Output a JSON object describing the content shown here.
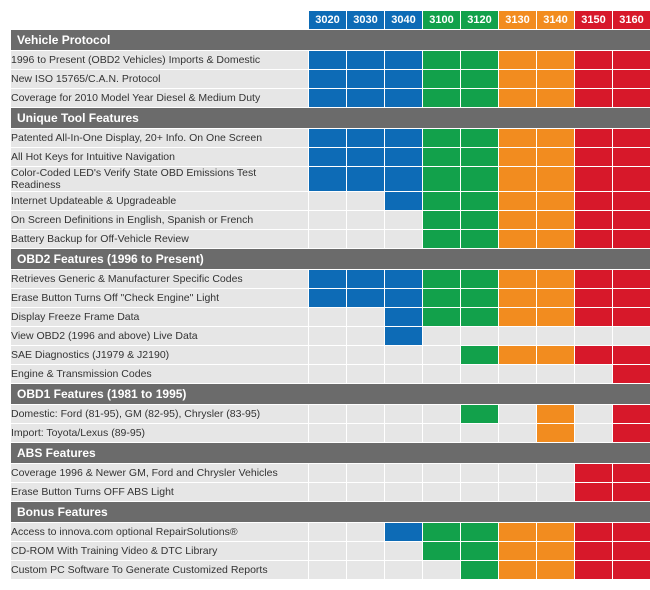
{
  "colors": {
    "blue": "#0d6bb6",
    "green": "#12a14b",
    "orange": "#f28c1f",
    "red": "#d7182a",
    "section_bg": "#6b6b6b",
    "row_bg": "#e6e6e6",
    "empty_cell": "#e6e6e6"
  },
  "products": [
    {
      "id": "3020",
      "color": "blue"
    },
    {
      "id": "3030",
      "color": "blue"
    },
    {
      "id": "3040",
      "color": "blue"
    },
    {
      "id": "3100",
      "color": "green"
    },
    {
      "id": "3120",
      "color": "green"
    },
    {
      "id": "3130",
      "color": "orange"
    },
    {
      "id": "3140",
      "color": "orange"
    },
    {
      "id": "3150",
      "color": "red"
    },
    {
      "id": "3160",
      "color": "red"
    }
  ],
  "sections": [
    {
      "title": "Vehicle Protocol",
      "rows": [
        {
          "label": "1996 to Present (OBD2 Vehicles) Imports & Domestic",
          "cells": [
            1,
            1,
            1,
            1,
            1,
            1,
            1,
            1,
            1
          ]
        },
        {
          "label": "New ISO 15765/C.A.N. Protocol",
          "cells": [
            1,
            1,
            1,
            1,
            1,
            1,
            1,
            1,
            1
          ]
        },
        {
          "label": "Coverage for 2010 Model Year Diesel & Medium Duty",
          "cells": [
            1,
            1,
            1,
            1,
            1,
            1,
            1,
            1,
            1
          ]
        }
      ]
    },
    {
      "title": "Unique Tool Features",
      "rows": [
        {
          "label": "Patented All-In-One Display, 20+ Info. On One Screen",
          "cells": [
            1,
            1,
            1,
            1,
            1,
            1,
            1,
            1,
            1
          ]
        },
        {
          "label": "All Hot Keys for Intuitive Navigation",
          "cells": [
            1,
            1,
            1,
            1,
            1,
            1,
            1,
            1,
            1
          ]
        },
        {
          "label": "Color-Coded LED's Verify State OBD Emissions Test Readiness",
          "cells": [
            1,
            1,
            1,
            1,
            1,
            1,
            1,
            1,
            1
          ]
        },
        {
          "label": "Internet Updateable & Upgradeable",
          "cells": [
            0,
            0,
            1,
            1,
            1,
            1,
            1,
            1,
            1
          ]
        },
        {
          "label": "On Screen Definitions in English, Spanish or French",
          "cells": [
            0,
            0,
            0,
            1,
            1,
            1,
            1,
            1,
            1
          ]
        },
        {
          "label": "Battery Backup for Off-Vehicle Review",
          "cells": [
            0,
            0,
            0,
            1,
            1,
            1,
            1,
            1,
            1
          ]
        }
      ]
    },
    {
      "title": "OBD2 Features (1996 to Present)",
      "rows": [
        {
          "label": "Retrieves Generic & Manufacturer Specific Codes",
          "cells": [
            1,
            1,
            1,
            1,
            1,
            1,
            1,
            1,
            1
          ]
        },
        {
          "label": "Erase Button Turns Off \"Check Engine\" Light",
          "cells": [
            1,
            1,
            1,
            1,
            1,
            1,
            1,
            1,
            1
          ]
        },
        {
          "label": "Display Freeze Frame Data",
          "cells": [
            0,
            0,
            1,
            1,
            1,
            1,
            1,
            1,
            1
          ]
        },
        {
          "label": "View OBD2 (1996 and above) Live Data",
          "cells": [
            0,
            0,
            1,
            0,
            0,
            0,
            0,
            0,
            0
          ]
        },
        {
          "label": "SAE Diagnostics (J1979 & J2190)",
          "cells": [
            0,
            0,
            0,
            0,
            1,
            1,
            1,
            1,
            1
          ]
        },
        {
          "label": "Engine & Transmission Codes",
          "cells": [
            0,
            0,
            0,
            0,
            0,
            0,
            0,
            0,
            1
          ]
        }
      ]
    },
    {
      "title": "OBD1 Features (1981 to 1995)",
      "rows": [
        {
          "label": "Domestic: Ford (81-95), GM (82-95), Chrysler (83-95)",
          "cells": [
            0,
            0,
            0,
            0,
            1,
            0,
            1,
            0,
            1
          ]
        },
        {
          "label": "Import: Toyota/Lexus (89-95)",
          "cells": [
            0,
            0,
            0,
            0,
            0,
            0,
            1,
            0,
            1
          ]
        }
      ]
    },
    {
      "title": "ABS Features",
      "rows": [
        {
          "label": "Coverage 1996 & Newer GM, Ford and Chrysler Vehicles",
          "cells": [
            0,
            0,
            0,
            0,
            0,
            0,
            0,
            1,
            1
          ]
        },
        {
          "label": "Erase Button Turns OFF ABS Light",
          "cells": [
            0,
            0,
            0,
            0,
            0,
            0,
            0,
            1,
            1
          ]
        }
      ]
    },
    {
      "title": "Bonus Features",
      "rows": [
        {
          "label": "Access to innova.com optional RepairSolutions®",
          "cells": [
            0,
            0,
            1,
            1,
            1,
            1,
            1,
            1,
            1
          ]
        },
        {
          "label": "CD-ROM With Training Video & DTC Library",
          "cells": [
            0,
            0,
            0,
            1,
            1,
            1,
            1,
            1,
            1
          ]
        },
        {
          "label": "Custom PC Software To Generate Customized Reports",
          "cells": [
            0,
            0,
            0,
            0,
            1,
            1,
            1,
            1,
            1
          ]
        }
      ]
    }
  ]
}
